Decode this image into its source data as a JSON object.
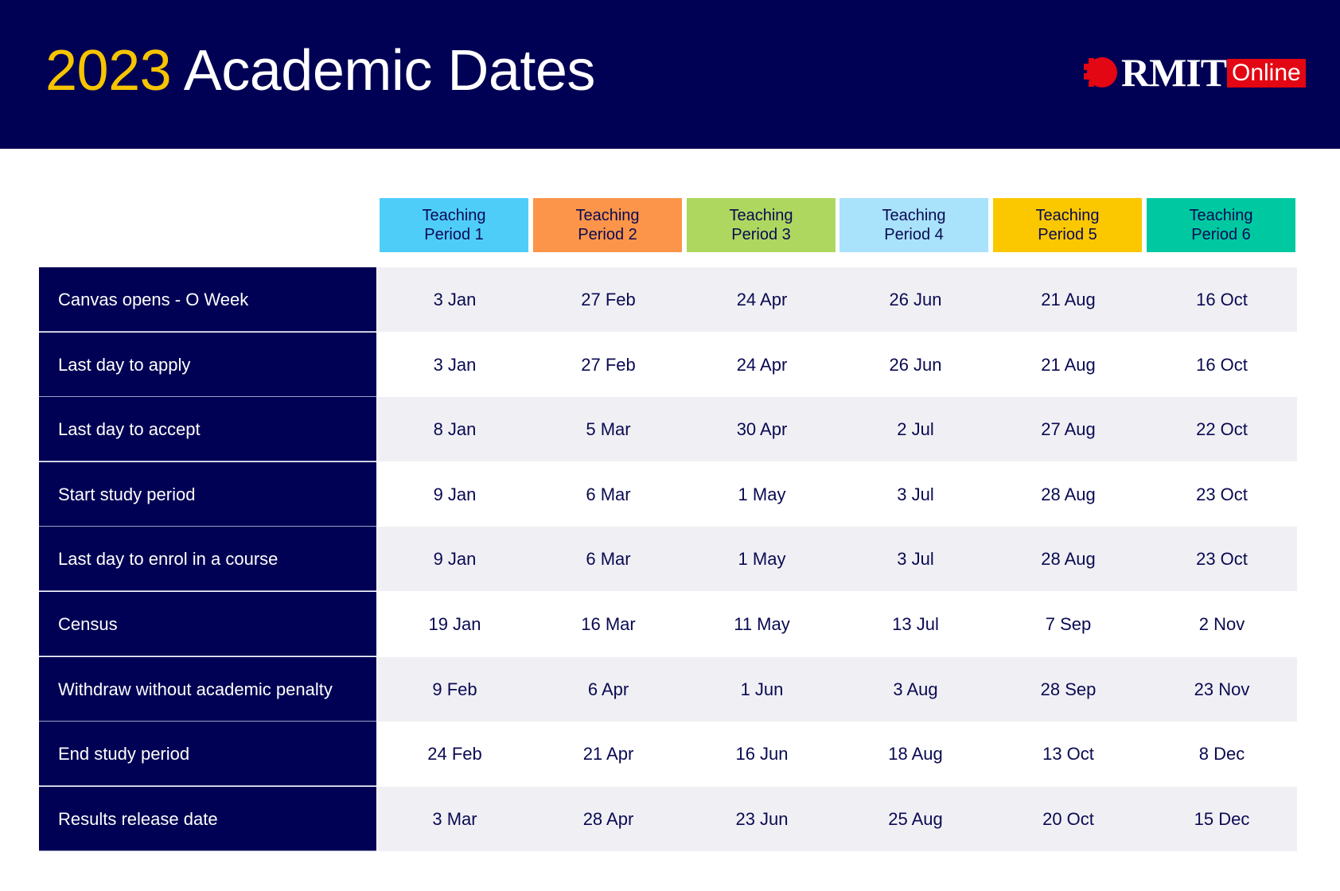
{
  "header": {
    "title_year": "2023",
    "title_rest": "Academic Dates",
    "background_color": "#000054",
    "year_color": "#f6c400"
  },
  "logo": {
    "mark_icon": "rmit-pixel-circle-icon",
    "brand": "RMIT",
    "badge": "Online",
    "badge_color": "#e30613"
  },
  "periods": [
    {
      "line1": "Teaching",
      "line2": "Period 1",
      "color": "#4fcdf9"
    },
    {
      "line1": "Teaching",
      "line2": "Period 2",
      "color": "#fc9549"
    },
    {
      "line1": "Teaching",
      "line2": "Period 3",
      "color": "#add75f"
    },
    {
      "line1": "Teaching",
      "line2": "Period 4",
      "color": "#a9e2fb"
    },
    {
      "line1": "Teaching",
      "line2": "Period 5",
      "color": "#fbc800"
    },
    {
      "line1": "Teaching",
      "line2": "Period 6",
      "color": "#00c9a1"
    }
  ],
  "rows": [
    {
      "label": "Canvas opens - O Week",
      "dates": [
        "3 Jan",
        "27 Feb",
        "24 Apr",
        "26 Jun",
        "21 Aug",
        "16 Oct"
      ]
    },
    {
      "label": "Last day to apply",
      "dates": [
        "3 Jan",
        "27 Feb",
        "24 Apr",
        "26 Jun",
        "21 Aug",
        "16 Oct"
      ]
    },
    {
      "label": "Last day to accept",
      "dates": [
        "8 Jan",
        "5 Mar",
        "30 Apr",
        "2 Jul",
        "27 Aug",
        "22 Oct"
      ]
    },
    {
      "label": "Start study period",
      "dates": [
        "9 Jan",
        "6 Mar",
        "1 May",
        "3 Jul",
        "28 Aug",
        "23 Oct"
      ]
    },
    {
      "label": "Last day to enrol in a course",
      "dates": [
        "9 Jan",
        "6 Mar",
        "1 May",
        "3 Jul",
        "28 Aug",
        "23 Oct"
      ]
    },
    {
      "label": "Census",
      "dates": [
        "19 Jan",
        "16 Mar",
        "11 May",
        "13 Jul",
        "7 Sep",
        "2 Nov"
      ]
    },
    {
      "label": "Withdraw without academic penalty",
      "dates": [
        "9 Feb",
        "6 Apr",
        "1 Jun",
        "3 Aug",
        "28 Sep",
        "23 Nov"
      ]
    },
    {
      "label": "End study period",
      "dates": [
        "24 Feb",
        "21 Apr",
        "16 Jun",
        "18 Aug",
        "13 Oct",
        "8 Dec"
      ]
    },
    {
      "label": "Results release date",
      "dates": [
        "3 Mar",
        "28 Apr",
        "23 Jun",
        "25 Aug",
        "20 Oct",
        "15 Dec"
      ]
    }
  ]
}
